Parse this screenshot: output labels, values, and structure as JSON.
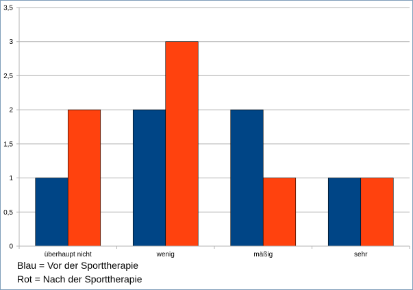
{
  "chart_data": {
    "type": "bar",
    "categories": [
      "überhaupt nicht",
      "wenig",
      "mäßig",
      "sehr"
    ],
    "series": [
      {
        "color": "#004586",
        "values": [
          1,
          2,
          2,
          1
        ]
      },
      {
        "color": "#ff420e",
        "values": [
          2,
          3,
          1,
          1
        ]
      }
    ],
    "title": "",
    "xlabel": "",
    "ylabel": "",
    "ylim": [
      0,
      3.5
    ],
    "yticks": [
      "0",
      "0,5",
      "1",
      "1,5",
      "2",
      "2,5",
      "3",
      "3,5"
    ],
    "grid": true,
    "legend_notes": [
      "Blau = Vor der Sporttherapie",
      "Rot = Nach der Sporttherapie"
    ]
  }
}
